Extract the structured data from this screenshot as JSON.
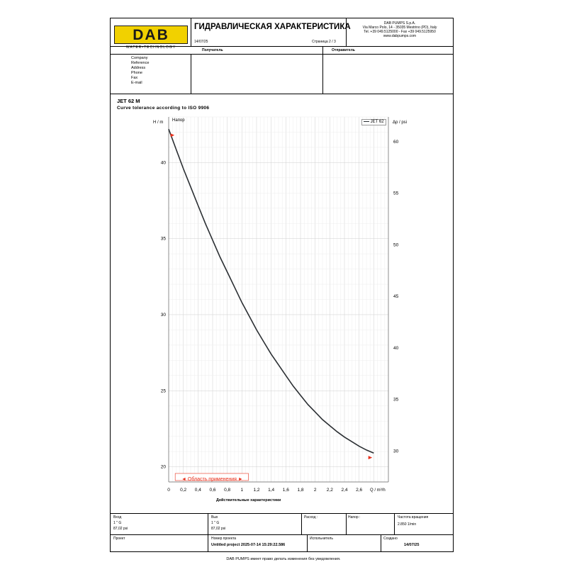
{
  "header": {
    "logo_text": "DAB",
    "logo_subtitle": "WATER•TECHNOLOGY",
    "title": "ГИДРАВЛИЧЕСКАЯ ХАРАКТЕРИСТИКА",
    "date": "14/07/25",
    "page": "Страница 2 / 3",
    "company_lines": [
      "DAB PUMPS S.p.A.",
      "Via Marco Polo, 14 - 35035 Mestrino (PD), Italy",
      "Tel. +39 049.5125000 - Fax +39 049.5125950",
      "www.dabpumps.com"
    ],
    "recipient_label": "Получатель",
    "sender_label": "Отправитель",
    "contact_fields": [
      "Company",
      "Reference",
      "Address",
      "Phone",
      "Fax",
      "E-mail"
    ]
  },
  "product": {
    "model": "JET 62 M",
    "tolerance": "Curve tolerance according to ISO 9906"
  },
  "chart_data": {
    "type": "line",
    "title": "",
    "curve_label": "Напор",
    "legend": "JET 62",
    "xlabel": "Q / m³/h",
    "ylabel_left": "H / m",
    "ylabel_right": "Δp / psi",
    "xaxis_title": "Действительные характеристики",
    "xlim": [
      0,
      3
    ],
    "ylim": [
      19,
      43
    ],
    "ylim_right": [
      27,
      62.4
    ],
    "x_ticks": [
      "0",
      "0,2",
      "0,4",
      "0,6",
      "0,8",
      "1",
      "1,2",
      "1,4",
      "1,6",
      "1,8",
      "2",
      "2,2",
      "2,4",
      "2,6"
    ],
    "x_tick_values": [
      0,
      0.2,
      0.4,
      0.6,
      0.8,
      1.0,
      1.2,
      1.4,
      1.6,
      1.8,
      2.0,
      2.2,
      2.4,
      2.6
    ],
    "y_ticks_left": [
      20,
      25,
      30,
      35,
      40
    ],
    "y_ticks_right": [
      30,
      35,
      40,
      45,
      50,
      55,
      60
    ],
    "series": [
      {
        "name": "JET 62",
        "color": "#2b2f33",
        "x": [
          0,
          0.1,
          0.2,
          0.3,
          0.4,
          0.5,
          0.6,
          0.7,
          0.8,
          0.9,
          1.0,
          1.1,
          1.2,
          1.3,
          1.4,
          1.5,
          1.6,
          1.7,
          1.8,
          1.9,
          2.0,
          2.1,
          2.2,
          2.3,
          2.4,
          2.5,
          2.6,
          2.7,
          2.8
        ],
        "y": [
          42.2,
          40.9,
          39.6,
          38.4,
          37.2,
          36.0,
          34.9,
          33.8,
          32.8,
          31.8,
          30.8,
          29.9,
          29.0,
          28.2,
          27.4,
          26.7,
          26.0,
          25.3,
          24.7,
          24.1,
          23.6,
          23.1,
          22.7,
          22.3,
          21.95,
          21.65,
          21.35,
          21.1,
          20.9
        ]
      }
    ],
    "markers": [
      {
        "x": 0.05,
        "y": 41.8
      },
      {
        "x": 2.75,
        "y": 20.6
      }
    ],
    "application_range": {
      "label": "Область применения",
      "x_start": 0.05,
      "x_end": 1.05
    },
    "grid": true,
    "accent_color": "#e8311d"
  },
  "bottom": {
    "inlet_label": "Вход",
    "inlet_size": "1 \" G",
    "inlet_pressure": "87,02 psi",
    "outlet_label": "Вых",
    "outlet_size": "1 \" G",
    "outlet_pressure": "87,02 psi",
    "flow_label": "Расход :",
    "head_label": "Напор :",
    "speed_label": "Частота вращения",
    "speed_value": "2.850 1/min",
    "project_label": "Проект",
    "project_number_label": "Номер проекта",
    "project_number_value": "Untitled project 2025-07-14 15:29:22.586",
    "author_label": "Испольнитель",
    "created_label": "Создано",
    "created_value": "14/07/25"
  },
  "footer_note": "DAB PUMPS имеет право делать изменения без уведомления."
}
